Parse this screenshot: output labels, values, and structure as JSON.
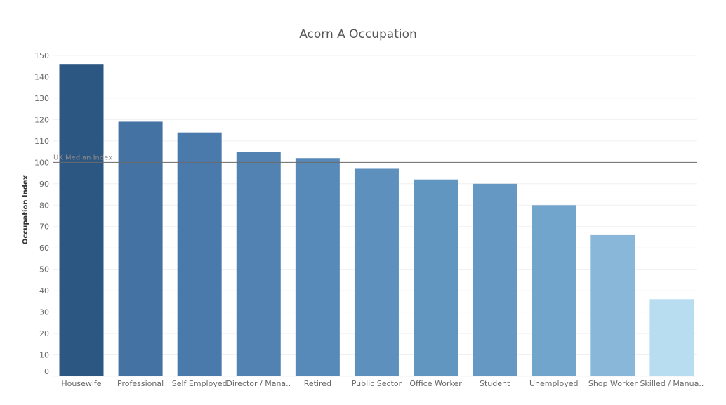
{
  "chart_data": {
    "type": "bar",
    "title": "Acorn A Occupation",
    "xlabel": "",
    "ylabel": "Occupation Index",
    "categories": [
      "Housewife",
      "Professional",
      "Self Employed",
      "Director / Mana..",
      "Retired",
      "Public Sector",
      "Office Worker",
      "Student",
      "Unemployed",
      "Shop Worker",
      "Skilled / Manua.."
    ],
    "values": [
      146,
      119,
      114,
      105,
      102,
      97,
      92,
      90,
      80,
      66,
      36
    ],
    "ylim": [
      0,
      150
    ],
    "yticks": [
      0,
      10,
      20,
      30,
      40,
      50,
      60,
      70,
      80,
      90,
      100,
      110,
      120,
      130,
      140,
      150
    ],
    "grid": true,
    "colors": [
      "#2c5782",
      "#4472a2",
      "#4a7aab",
      "#5282b2",
      "#5789b9",
      "#5d90bd",
      "#6196c1",
      "#6599c4",
      "#72a5cc",
      "#89b7da",
      "#b8dcf0"
    ],
    "reference_line": {
      "label": "UK Median Index",
      "value": 100,
      "color": "#6b6b6b"
    }
  }
}
